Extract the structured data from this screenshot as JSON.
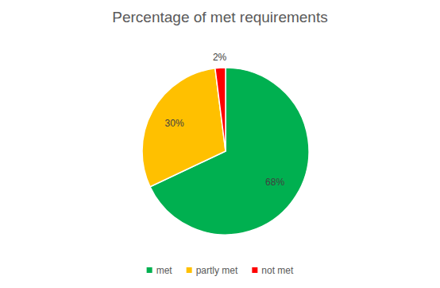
{
  "chart_data": {
    "type": "pie",
    "title": "Percentage of met requirements",
    "categories": [
      "met",
      "partly met",
      "not met"
    ],
    "values": [
      68,
      30,
      2
    ],
    "value_labels": [
      "68%",
      "30%",
      "2%"
    ],
    "colors": [
      "#00b050",
      "#ffc000",
      "#ff0000"
    ],
    "data_labels": true,
    "legend": "bottom"
  }
}
